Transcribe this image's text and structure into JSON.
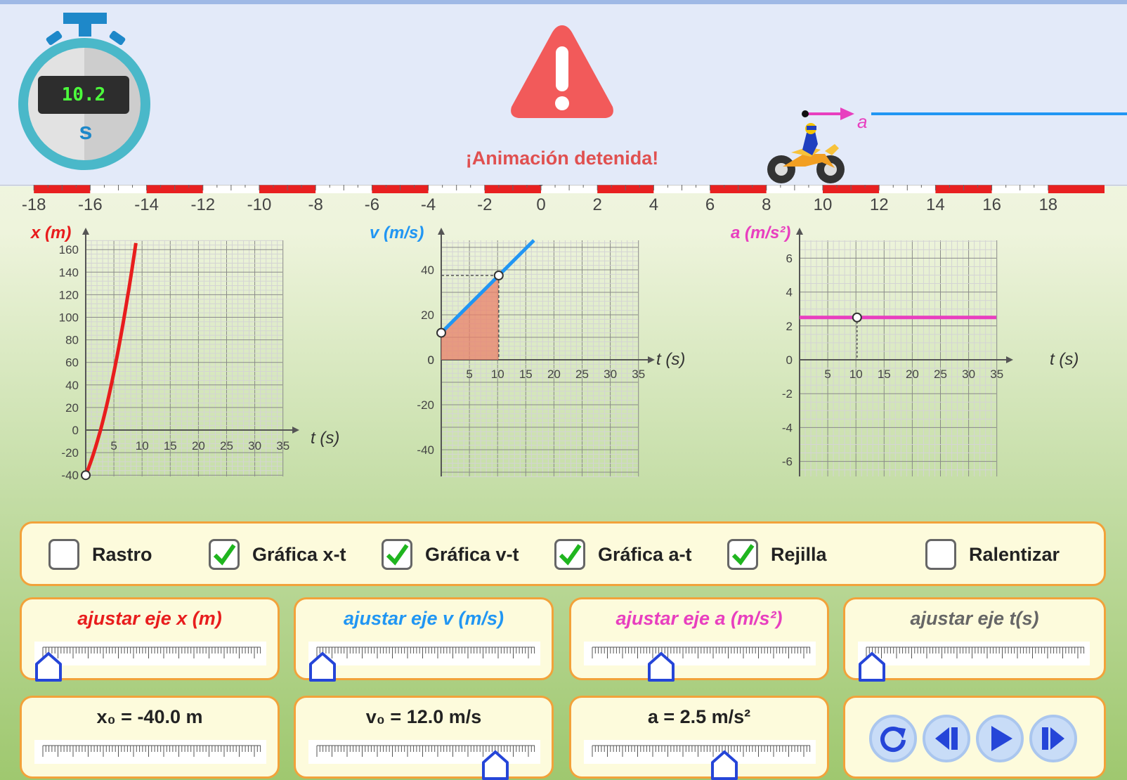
{
  "stopwatch": {
    "time": "10.2",
    "unit": "s"
  },
  "status": {
    "text": "¡Animación detenida!"
  },
  "vector": {
    "label": "a"
  },
  "ruler": {
    "ticks": [
      "-18",
      "-16",
      "-14",
      "-12",
      "-10",
      "-8",
      "-6",
      "-4",
      "-2",
      "0",
      "2",
      "4",
      "6",
      "8",
      "10",
      "12",
      "14",
      "16",
      "18"
    ]
  },
  "graphs": {
    "xt": {
      "ylabel": "x (m)",
      "xlabel": "t (s)",
      "yticks": [
        "160",
        "140",
        "120",
        "100",
        "80",
        "60",
        "40",
        "20",
        "0",
        "-20",
        "-40"
      ],
      "xticks": [
        "5",
        "10",
        "15",
        "20",
        "25",
        "30",
        "35"
      ]
    },
    "vt": {
      "ylabel": "v (m/s)",
      "xlabel": "t (s)",
      "yticks": [
        "40",
        "20",
        "0",
        "-20",
        "-40"
      ],
      "xticks": [
        "5",
        "10",
        "15",
        "20",
        "25",
        "30",
        "35"
      ]
    },
    "at": {
      "ylabel": "a (m/s²)",
      "xlabel": "t (s)",
      "yticks": [
        "6",
        "4",
        "2",
        "0",
        "-2",
        "-4",
        "-6"
      ],
      "xticks": [
        "5",
        "10",
        "15",
        "20",
        "25",
        "30",
        "35"
      ]
    }
  },
  "options": [
    {
      "label": "Rastro",
      "checked": false
    },
    {
      "label": "Gráfica x-t",
      "checked": true
    },
    {
      "label": "Gráfica v-t",
      "checked": true
    },
    {
      "label": "Gráfica a-t",
      "checked": true
    },
    {
      "label": "Rejilla",
      "checked": true
    },
    {
      "label": "Ralentizar",
      "checked": false
    }
  ],
  "axis_sliders": {
    "x": {
      "label": "ajustar eje x (m)",
      "color": "#e81d1d",
      "level": 0.0
    },
    "v": {
      "label": "ajustar eje v (m/s)",
      "color": "#2196f3",
      "level": 0.0
    },
    "a": {
      "label": "ajustar eje a (m/s²)",
      "color": "#e83fbf",
      "level": 0.3
    },
    "t": {
      "label": "ajustar eje t(s)",
      "color": "#666666",
      "level": 0.0
    }
  },
  "param_sliders": {
    "x0": {
      "label": "x₀ = -40.0 m",
      "level": 0.0
    },
    "v0": {
      "label": "v₀ = 12.0 m/s",
      "level": 0.82
    },
    "a": {
      "label": "a = 2.5 m/s²",
      "level": 0.6
    }
  },
  "sim": {
    "x0": -40.0,
    "v0": 12.0,
    "a": 2.5,
    "t": 10.2
  },
  "playback": [
    "reset-icon",
    "step-back-icon",
    "play-icon",
    "step-forward-icon"
  ]
}
